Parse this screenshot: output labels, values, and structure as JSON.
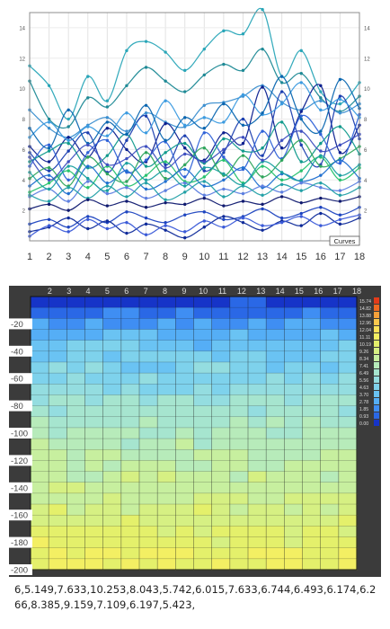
{
  "chart_data": [
    {
      "type": "line",
      "title": "",
      "legend_text": "Curves",
      "x": [
        1,
        2,
        3,
        4,
        5,
        6,
        7,
        8,
        9,
        10,
        11,
        12,
        13,
        14,
        15,
        16,
        17,
        18
      ],
      "x_tick_labels": [
        "1",
        "2",
        "3",
        "4",
        "5",
        "6",
        "7",
        "8",
        "9",
        "10",
        "11",
        "12",
        "13",
        "14",
        "15",
        "16",
        "17",
        "18"
      ],
      "y_tick_labels": [
        "2",
        "4",
        "6",
        "8",
        "10",
        "12",
        "14"
      ],
      "ylim": [
        0,
        15
      ],
      "grid": true,
      "series": [
        {
          "color": "#2aa6b8",
          "values": [
            11.5,
            10.2,
            8.0,
            10.8,
            9.2,
            12.5,
            13.1,
            12.4,
            11.2,
            12.6,
            13.8,
            13.6,
            15.2,
            10.8,
            12.5,
            9.8,
            9.0,
            10.4
          ]
        },
        {
          "color": "#1f8a96",
          "values": [
            10.5,
            8.0,
            7.5,
            9.4,
            8.8,
            10.2,
            11.4,
            10.5,
            9.8,
            10.9,
            11.6,
            11.2,
            12.6,
            10.4,
            11.0,
            9.4,
            8.5,
            9.5
          ]
        },
        {
          "color": "#3c8fd0",
          "values": [
            8.6,
            7.4,
            6.8,
            7.6,
            8.1,
            7.2,
            8.4,
            7.8,
            7.5,
            8.9,
            9.1,
            9.5,
            10.2,
            9.1,
            8.6,
            9.2,
            8.4,
            9.0
          ]
        },
        {
          "color": "#0b1f8f",
          "values": [
            6.2,
            5.2,
            6.8,
            5.5,
            7.4,
            6.0,
            5.2,
            7.7,
            6.1,
            5.3,
            7.1,
            6.4,
            10.1,
            6.1,
            8.5,
            10.2,
            5.8,
            7.6
          ]
        },
        {
          "color": "#1c3fb0",
          "values": [
            5.8,
            4.6,
            5.9,
            7.1,
            4.5,
            6.6,
            8.2,
            5.0,
            6.9,
            4.6,
            5.8,
            8.0,
            5.6,
            9.8,
            6.3,
            5.0,
            9.5,
            6.7
          ]
        },
        {
          "color": "#2f62d8",
          "values": [
            4.9,
            6.3,
            4.0,
            5.8,
            6.6,
            4.5,
            5.3,
            6.5,
            4.2,
            7.1,
            5.5,
            4.7,
            7.2,
            5.4,
            8.2,
            7.0,
            5.1,
            8.3
          ]
        },
        {
          "color": "#109a8c",
          "values": [
            5.2,
            5.9,
            6.4,
            4.8,
            5.6,
            7.0,
            4.9,
            5.8,
            6.4,
            5.1,
            6.7,
            5.9,
            6.1,
            7.8,
            5.2,
            6.4,
            7.5,
            5.7
          ]
        },
        {
          "color": "#2fa55c",
          "values": [
            4.1,
            4.8,
            3.6,
            5.5,
            4.4,
            3.9,
            5.8,
            4.1,
            5.0,
            6.1,
            4.3,
            5.6,
            4.2,
            5.3,
            6.6,
            4.9,
            5.4,
            6.2
          ]
        },
        {
          "color": "#27c26e",
          "values": [
            3.2,
            3.8,
            4.6,
            3.5,
            4.9,
            3.6,
            4.3,
            5.2,
            3.9,
            4.2,
            5.3,
            3.8,
            4.9,
            4.0,
            4.6,
            5.5,
            4.0,
            4.8
          ]
        },
        {
          "color": "#1f6fd0",
          "values": [
            3.6,
            4.3,
            3.1,
            4.9,
            3.8,
            4.6,
            3.4,
            3.9,
            4.7,
            3.6,
            4.0,
            4.8,
            3.5,
            4.4,
            3.9,
            4.3,
            5.3,
            4.1
          ]
        },
        {
          "color": "#5d7fe0",
          "values": [
            2.9,
            3.4,
            2.6,
            3.9,
            3.1,
            3.5,
            2.8,
            3.3,
            3.8,
            3.0,
            3.4,
            3.1,
            3.6,
            3.2,
            3.8,
            3.5,
            3.3,
            3.9
          ]
        },
        {
          "color": "#22a0a6",
          "values": [
            3.0,
            2.6,
            3.5,
            2.8,
            3.6,
            2.9,
            3.8,
            2.7,
            3.2,
            3.9,
            2.9,
            3.6,
            3.0,
            3.7,
            3.3,
            3.8,
            3.0,
            3.5
          ]
        },
        {
          "color": "#101a70",
          "values": [
            2.1,
            2.4,
            2.0,
            2.7,
            2.3,
            2.6,
            2.2,
            2.5,
            2.4,
            2.8,
            2.3,
            2.6,
            2.4,
            2.9,
            2.5,
            2.8,
            2.6,
            2.9
          ]
        },
        {
          "color": "#1d44c0",
          "values": [
            1.1,
            1.4,
            0.9,
            1.6,
            1.2,
            1.9,
            1.5,
            1.2,
            1.7,
            1.9,
            1.4,
            1.6,
            2.1,
            1.5,
            1.8,
            2.2,
            1.7,
            2.2
          ]
        },
        {
          "color": "#0e2a9a",
          "values": [
            0.6,
            0.9,
            1.5,
            0.8,
            1.3,
            0.5,
            1.1,
            0.7,
            0.2,
            0.9,
            1.6,
            1.2,
            0.7,
            1.3,
            1.0,
            1.8,
            1.1,
            1.5
          ]
        },
        {
          "color": "#3a5ad8",
          "values": [
            0.3,
            1.0,
            0.6,
            1.4,
            0.8,
            1.2,
            0.4,
            1.0,
            0.6,
            1.3,
            0.9,
            1.5,
            1.0,
            1.2,
            1.6,
            1.0,
            1.4,
            1.7
          ]
        },
        {
          "color": "#3c9be0",
          "values": [
            6.8,
            7.8,
            6.6,
            7.5,
            6.9,
            8.4,
            7.1,
            9.2,
            7.6,
            8.1,
            7.8,
            9.6,
            8.3,
            9.0,
            10.4,
            8.6,
            9.3,
            8.1
          ]
        },
        {
          "color": "#0a66b0",
          "values": [
            7.4,
            6.1,
            8.6,
            6.4,
            7.8,
            7.0,
            8.9,
            6.6,
            8.1,
            7.4,
            9.0,
            7.6,
            8.4,
            10.8,
            8.0,
            7.2,
            10.6,
            8.7
          ]
        },
        {
          "color": "#1aa0a0",
          "values": [
            4.5,
            3.4,
            4.9,
            4.1,
            3.3,
            5.1,
            4.0,
            4.6,
            3.6,
            4.8,
            4.4,
            3.7,
            5.2,
            4.5,
            4.0,
            5.6,
            4.3,
            5.0
          ]
        },
        {
          "color": "#3e4fc0",
          "values": [
            5.5,
            4.0,
            5.2,
            6.3,
            5.0,
            5.4,
            6.2,
            4.8,
            5.7,
            5.2,
            6.0,
            6.8,
            5.3,
            6.6,
            7.2,
            5.9,
            6.3,
            7.0
          ]
        }
      ]
    },
    {
      "type": "heatmap",
      "title": "",
      "x_tick_labels": [
        "2",
        "3",
        "4",
        "5",
        "6",
        "7",
        "8",
        "9",
        "10",
        "11",
        "12",
        "13",
        "14",
        "15",
        "16",
        "17",
        "18"
      ],
      "y_tick_labels": [
        "-20",
        "-40",
        "-60",
        "-80",
        "-100",
        "-120",
        "-140",
        "-160",
        "-180",
        "-200"
      ],
      "ylim": [
        -200,
        0
      ],
      "legend_values": [
        "15.74",
        "14.82",
        "13.88",
        "12.96",
        "12.04",
        "11.11",
        "10.19",
        "9.26",
        "8.34",
        "7.41",
        "6.49",
        "5.56",
        "4.63",
        "3.70",
        "2.78",
        "1.85",
        "0.93",
        "0.00"
      ],
      "colorscale": [
        "#e23b1a",
        "#f06a22",
        "#f7a13a",
        "#fbc94d",
        "#fde25a",
        "#f3ef63",
        "#e4f06b",
        "#d6f083",
        "#c7ef9f",
        "#b7ebba",
        "#a6e5cf",
        "#94dde0",
        "#7ed2ec",
        "#6ac3f3",
        "#55aef6",
        "#3f8ef3",
        "#2a68e6",
        "#1634c8"
      ],
      "columns": 18,
      "rows": 25,
      "row_base_values": [
        0.4,
        1.1,
        2.3,
        3.2,
        3.8,
        4.3,
        4.7,
        5.1,
        5.4,
        5.9,
        6.3,
        6.8,
        7.2,
        7.5,
        7.8,
        8.0,
        8.3,
        8.5,
        8.8,
        9.2,
        9.6,
        10.0,
        10.3,
        10.6,
        10.8
      ],
      "hot_spots": [
        {
          "x": 10.5,
          "y": -192,
          "value": 12.2,
          "radius": 2.2
        },
        {
          "x": 7.5,
          "y": -188,
          "value": 11.0,
          "radius": 1.8
        },
        {
          "x": 12.5,
          "y": -186,
          "value": 11.0,
          "radius": 1.7
        },
        {
          "x": 15.5,
          "y": -152,
          "value": 10.3,
          "radius": 1.6
        },
        {
          "x": 4.0,
          "y": -190,
          "value": 10.3,
          "radius": 1.6
        }
      ]
    }
  ],
  "csv_text": "6,5.149,7.633,10.253,8.043,5.742,6.015,7.633,6.744,6.493,6.174,6.266,8.385,9.159,7.109,6.197,5.423,"
}
